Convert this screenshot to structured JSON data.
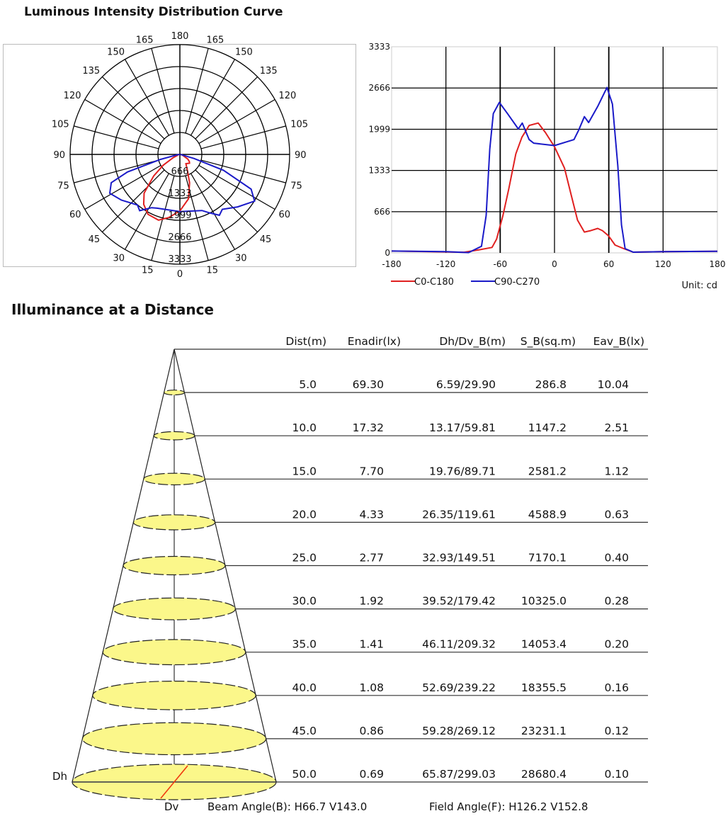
{
  "titles": {
    "luminous": "Luminous Intensity Distribution Curve",
    "illuminance": "Illuminance at a Distance"
  },
  "chart_data": [
    {
      "type": "polar",
      "angle_labels_left": [
        "180",
        "165",
        "150",
        "135",
        "120",
        "105",
        "90",
        "75",
        "60",
        "45",
        "30",
        "15",
        "0"
      ],
      "angle_labels_right": [
        "165",
        "150",
        "135",
        "120",
        "105",
        "90",
        "75",
        "60",
        "45",
        "30",
        "15"
      ],
      "radial_ticks": [
        "666",
        "1333",
        "1999",
        "2666",
        "3333"
      ],
      "rlim": [
        0,
        3333
      ],
      "series": [
        {
          "name": "C0-C180",
          "color": "#e02020"
        },
        {
          "name": "C90-C270",
          "color": "#1a1ac8"
        }
      ]
    },
    {
      "type": "line",
      "xlim": [
        -180,
        180
      ],
      "ylim": [
        0,
        3333
      ],
      "xticks": [
        "-180",
        "-120",
        "-60",
        "0",
        "60",
        "120",
        "180"
      ],
      "yticks": [
        "0",
        "666",
        "1333",
        "1999",
        "2666",
        "3333"
      ],
      "grid": true,
      "legend": "bottom-left",
      "unit_label": "Unit: cd",
      "series": [
        {
          "name": "C0-C180",
          "color": "#e02020",
          "points": [
            [
              -180,
              30
            ],
            [
              -100,
              10
            ],
            [
              -83,
              50
            ],
            [
              -69,
              88
            ],
            [
              -64,
              222
            ],
            [
              -57,
              605
            ],
            [
              -50.6,
              1027
            ],
            [
              -42.7,
              1601
            ],
            [
              -36,
              1870
            ],
            [
              -28,
              2061
            ],
            [
              -18,
              2099
            ],
            [
              -10,
              1946
            ],
            [
              0,
              1716
            ],
            [
              11,
              1371
            ],
            [
              18.9,
              912
            ],
            [
              25.4,
              529
            ],
            [
              33,
              337
            ],
            [
              40,
              360
            ],
            [
              47.7,
              395
            ],
            [
              53,
              360
            ],
            [
              59.5,
              280
            ],
            [
              67,
              126
            ],
            [
              76.5,
              69
            ],
            [
              87,
              11
            ],
            [
              120,
              20
            ],
            [
              180,
              25
            ]
          ]
        },
        {
          "name": "C90-C270",
          "color": "#1a1ac8",
          "points": [
            [
              -180,
              30
            ],
            [
              -120,
              20
            ],
            [
              -95,
              5
            ],
            [
              -80.7,
              107
            ],
            [
              -75.5,
              605
            ],
            [
              -71.5,
              1678
            ],
            [
              -67.6,
              2253
            ],
            [
              -61,
              2433
            ],
            [
              -52,
              2253
            ],
            [
              -40,
              2004
            ],
            [
              -35.6,
              2099
            ],
            [
              -28,
              1831
            ],
            [
              -23,
              1774
            ],
            [
              0,
              1735
            ],
            [
              21.5,
              1831
            ],
            [
              26.7,
              1984
            ],
            [
              33,
              2203
            ],
            [
              37.7,
              2107
            ],
            [
              47.7,
              2368
            ],
            [
              58,
              2674
            ],
            [
              64,
              2406
            ],
            [
              70,
              1410
            ],
            [
              74,
              452
            ],
            [
              78,
              69
            ],
            [
              87,
              11
            ],
            [
              120,
              20
            ],
            [
              180,
              25
            ]
          ]
        }
      ]
    },
    {
      "type": "table",
      "columns": [
        "Dist(m)",
        "Enadir(lx)",
        "Dh/Dv_B(m)",
        "S_B(sq.m)",
        "Eav_B(lx)"
      ],
      "rows": [
        [
          "5.0",
          "69.30",
          "6.59/29.90",
          "286.8",
          "10.04"
        ],
        [
          "10.0",
          "17.32",
          "13.17/59.81",
          "1147.2",
          "2.51"
        ],
        [
          "15.0",
          "7.70",
          "19.76/89.71",
          "2581.2",
          "1.12"
        ],
        [
          "20.0",
          "4.33",
          "26.35/119.61",
          "4588.9",
          "0.63"
        ],
        [
          "25.0",
          "2.77",
          "32.93/149.51",
          "7170.1",
          "0.40"
        ],
        [
          "30.0",
          "1.92",
          "39.52/179.42",
          "10325.0",
          "0.28"
        ],
        [
          "35.0",
          "1.41",
          "46.11/209.32",
          "14053.4",
          "0.20"
        ],
        [
          "40.0",
          "1.08",
          "52.69/239.22",
          "18355.5",
          "0.16"
        ],
        [
          "45.0",
          "0.86",
          "59.28/269.12",
          "23231.1",
          "0.12"
        ],
        [
          "50.0",
          "0.69",
          "65.87/299.03",
          "28680.4",
          "0.10"
        ]
      ],
      "dh_label": "Dh",
      "dv_label": "Dv",
      "beam_angle": "Beam Angle(B): H66.7 V143.0",
      "field_angle": "Field Angle(F): H126.2 V152.8",
      "ellipse_fill": "#fbf78a"
    }
  ]
}
